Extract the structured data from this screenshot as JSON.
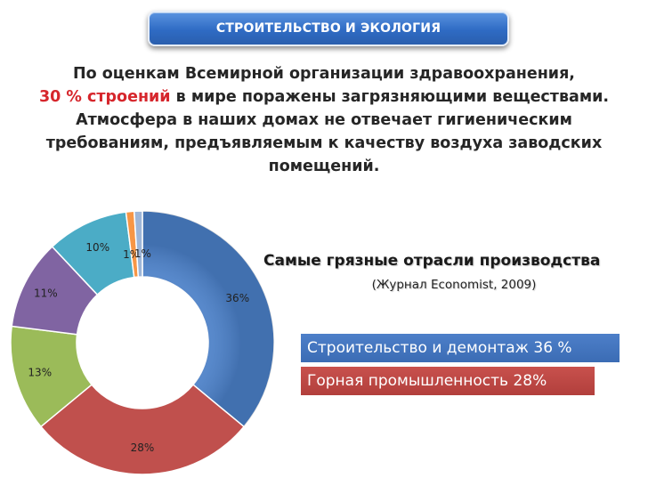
{
  "header": {
    "title": "СТРОИТЕЛЬСТВО И ЭКОЛОГИЯ"
  },
  "intro": {
    "line1": "По оценкам Всемирной организации здравоохранения,",
    "line2_highlight": "30 % строений",
    "line2_rest": " в мире поражены  загрязняющими веществами.",
    "line3": "Атмосфера в наших домах не отвечает  гигиеническим",
    "line4": "требованиям, предъявляемым к качеству воздуха заводских",
    "line5": "помещений."
  },
  "panel": {
    "subtitle": "Самые грязные отрасли производства",
    "source": "(Журнал Economist, 2009)",
    "legend": [
      {
        "text": "Строительство и демонтаж 36 %",
        "color": "#4472c4"
      },
      {
        "text": "Горная промышленность 28%",
        "color": "#c0504d"
      }
    ]
  },
  "chart_data": {
    "type": "pie",
    "donut": true,
    "values": [
      36,
      28,
      13,
      11,
      10,
      1,
      1
    ],
    "labels": [
      "36%",
      "28%",
      "13%",
      "11%",
      "10%",
      "1%",
      "1%"
    ],
    "colors": [
      "#4a7fc7",
      "#c0504d",
      "#9bbb59",
      "#8064a2",
      "#4bacc6",
      "#f79646",
      "#9eb6d8"
    ]
  }
}
